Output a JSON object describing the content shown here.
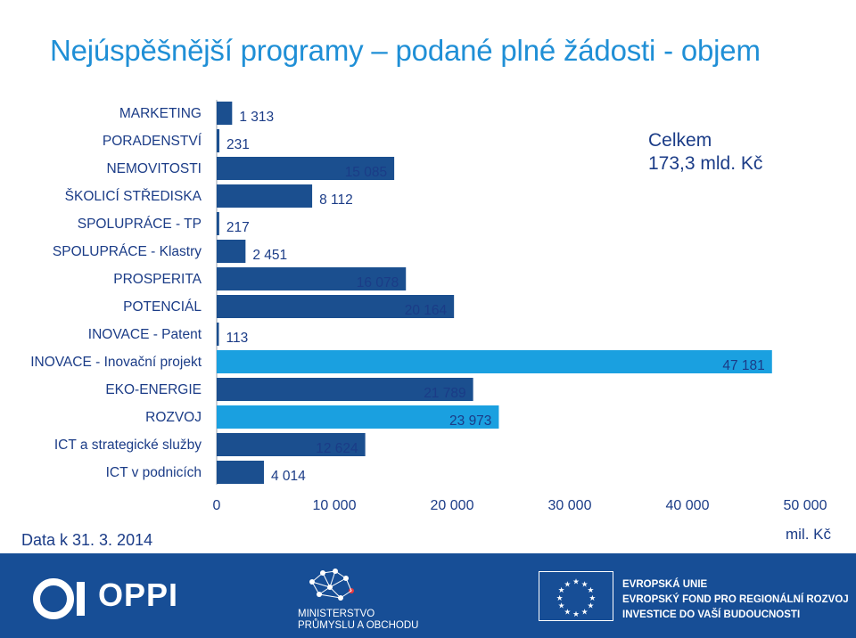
{
  "title": "Nejúspěšnější programy – podané plné žádosti - objem",
  "total": {
    "line1": "Celkem",
    "line2": "173,3 mld. Kč"
  },
  "date_label": "Data k 31. 3. 2014",
  "unit_label": "mil. Kč",
  "colors": {
    "accent": "#1f8fd6",
    "dark_bar": "#1b4f8f",
    "light_bar": "#1aa0e0",
    "text": "#1b3c87",
    "footer": "#174e96"
  },
  "chart_data": {
    "type": "bar",
    "orientation": "horizontal",
    "categories": [
      "MARKETING",
      "PORADENSTVÍ",
      "NEMOVITOSTI",
      "ŠKOLICÍ STŘEDISKA",
      "SPOLUPRÁCE - TP",
      "SPOLUPRÁCE - Klastry",
      "PROSPERITA",
      "POTENCIÁL",
      "INOVACE - Patent",
      "INOVACE - Inovační projekt",
      "EKO-ENERGIE",
      "ROZVOJ",
      "ICT a strategické služby",
      "ICT v podnicích"
    ],
    "values": [
      1313,
      231,
      15085,
      8112,
      217,
      2451,
      16078,
      20164,
      113,
      47181,
      21789,
      23973,
      12624,
      4014
    ],
    "value_labels": [
      "1 313",
      "231",
      "15 085",
      "8 112",
      "217",
      "2 451",
      "16 078",
      "20 164",
      "113",
      "47 181",
      "21 789",
      "23 973",
      "12 624",
      "4 014"
    ],
    "highlight": [
      false,
      false,
      false,
      false,
      false,
      false,
      false,
      false,
      false,
      true,
      false,
      true,
      false,
      false
    ],
    "xlim": [
      0,
      50000
    ],
    "ticks": [
      0,
      10000,
      20000,
      30000,
      40000,
      50000
    ],
    "tick_labels": [
      "0",
      "10 000",
      "20 000",
      "30 000",
      "40 000",
      "50 000"
    ],
    "xlabel": "mil. Kč"
  },
  "footer": {
    "oppi_text": "OPPI",
    "ministry_line1": "MINISTERSTVO",
    "ministry_line2": "PRŮMYSLU A OBCHODU",
    "eu_line1": "EVROPSKÁ UNIE",
    "eu_line2": "EVROPSKÝ FOND PRO REGIONÁLNÍ ROZVOJ",
    "eu_line3": "INVESTICE DO VAŠÍ BUDOUCNOSTI"
  }
}
